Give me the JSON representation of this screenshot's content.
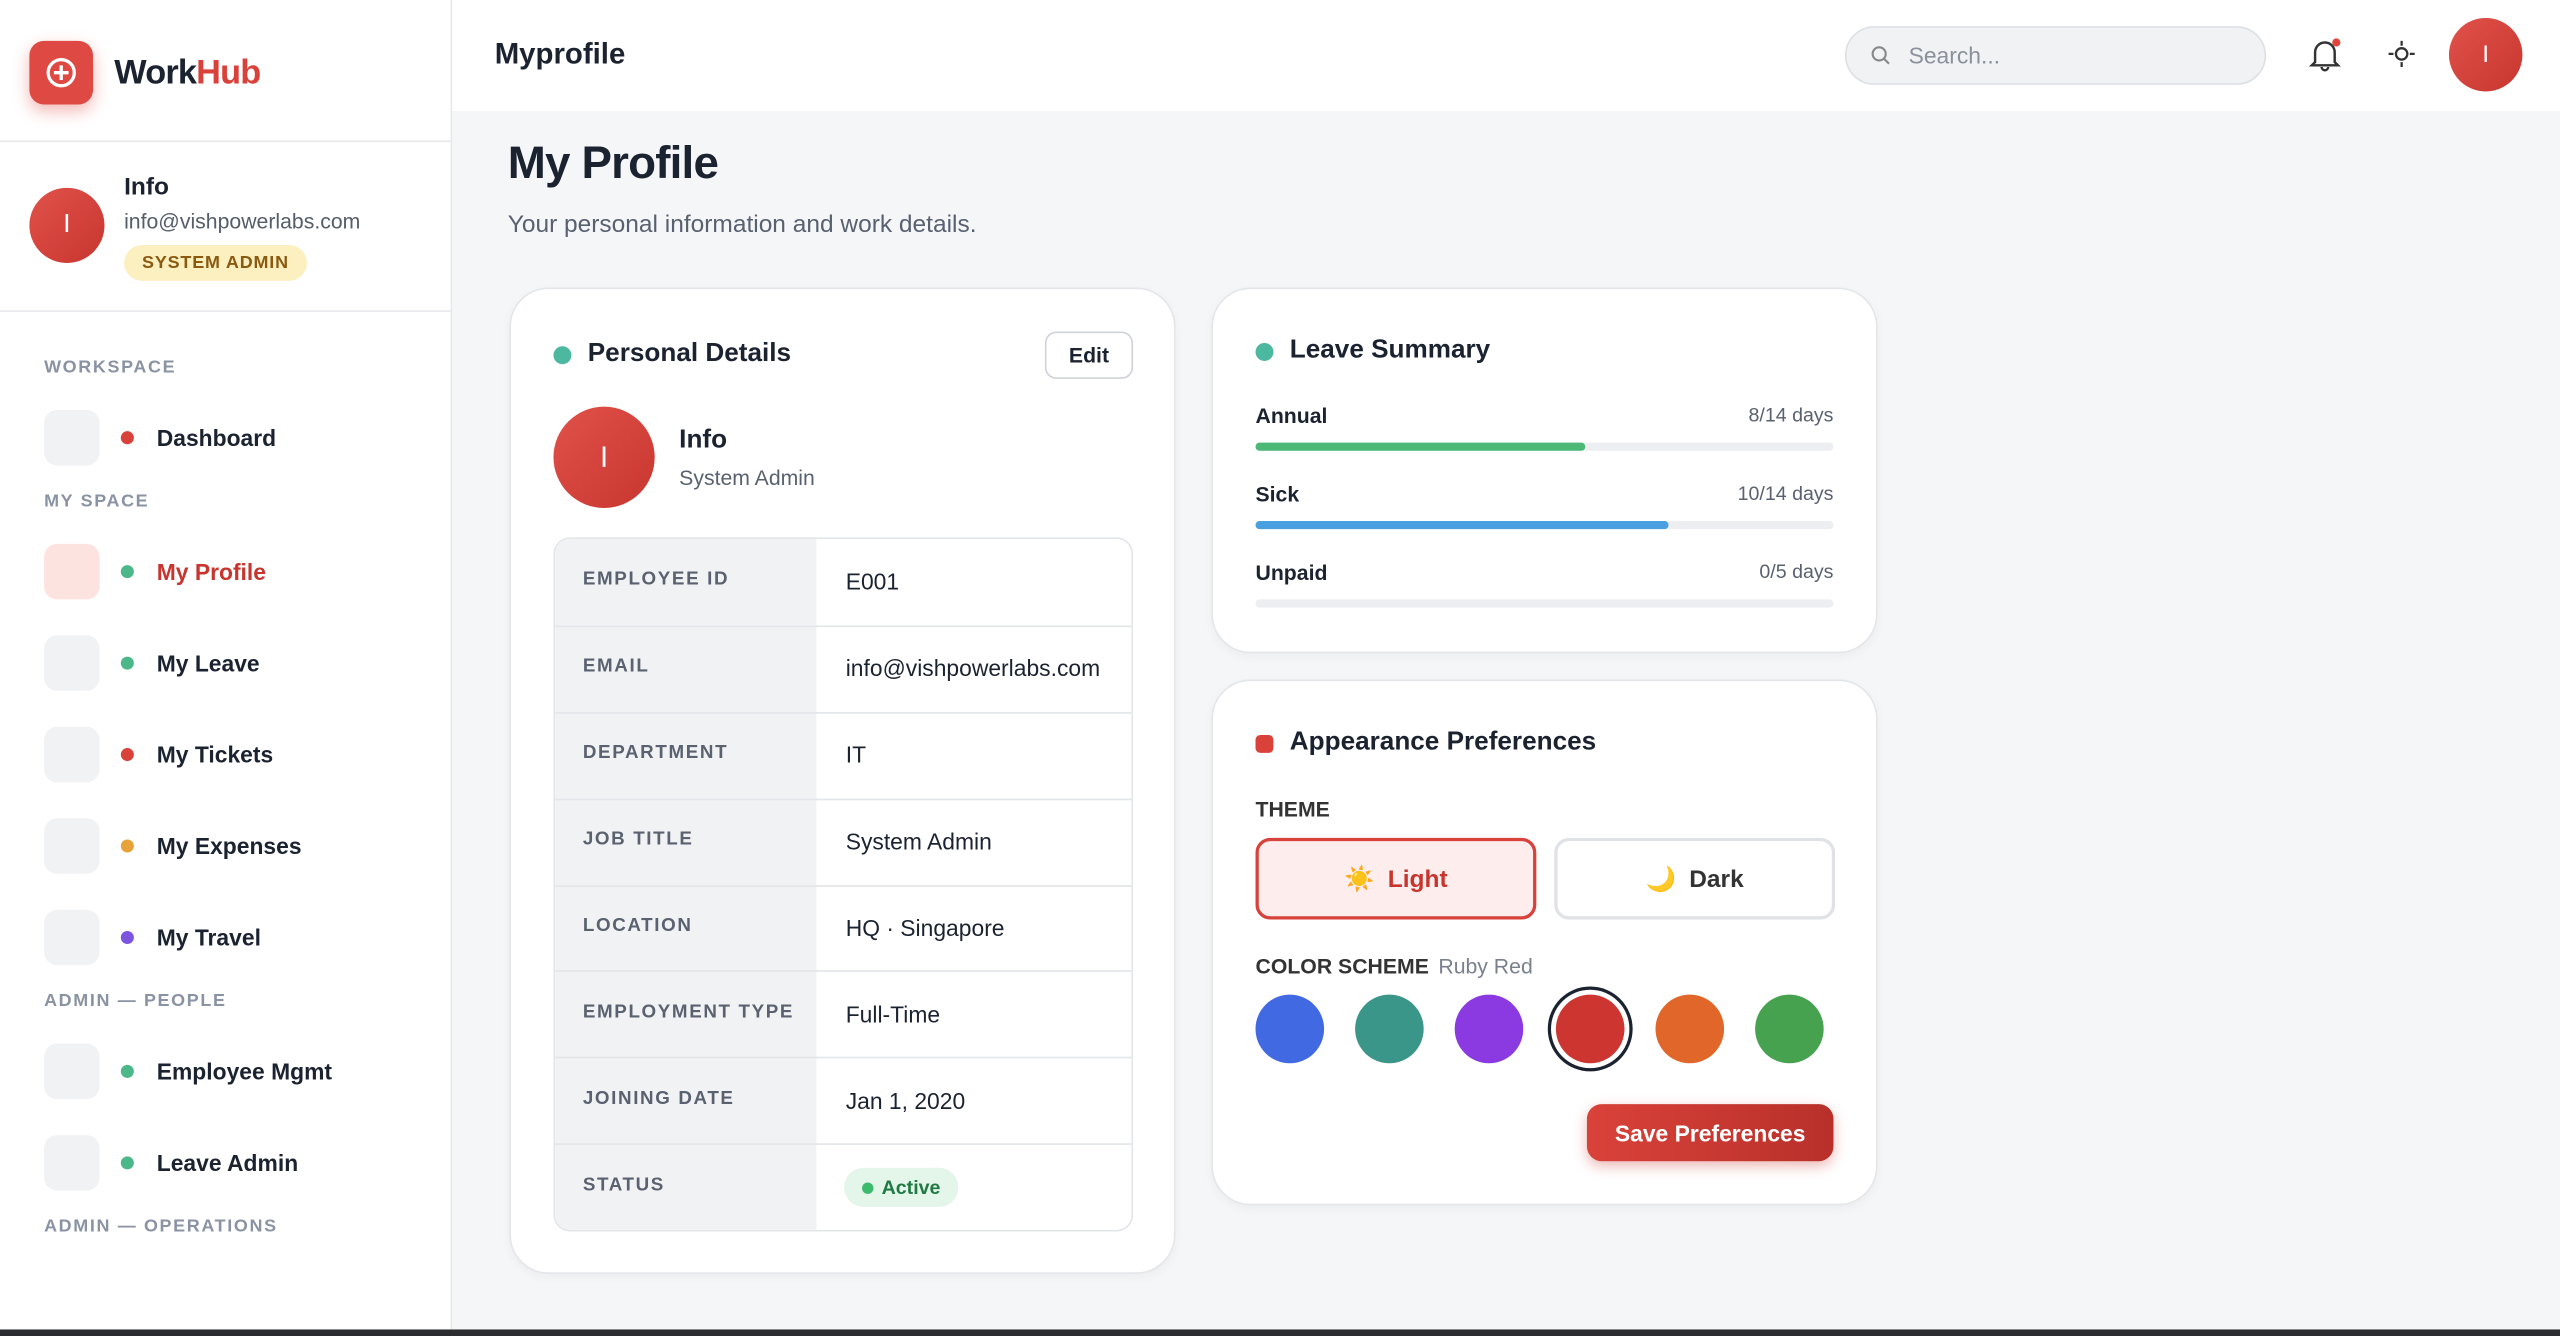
{
  "brand": {
    "part1": "Work",
    "part2": "Hub"
  },
  "user": {
    "initial": "I",
    "name": "Info",
    "email": "info@vishpowerlabs.com",
    "badge": "SYSTEM ADMIN"
  },
  "nav": [
    {
      "section": "WORKSPACE",
      "items": [
        {
          "label": "Dashboard",
          "dot": "#d9423a"
        }
      ]
    },
    {
      "section": "MY SPACE",
      "items": [
        {
          "label": "My Profile",
          "dot": "#4cb88a",
          "active": true
        },
        {
          "label": "My Leave",
          "dot": "#4cb88a"
        },
        {
          "label": "My Tickets",
          "dot": "#d9423a"
        },
        {
          "label": "My Expenses",
          "dot": "#e8a23a"
        },
        {
          "label": "My Travel",
          "dot": "#7b55e0"
        }
      ]
    },
    {
      "section": "ADMIN — PEOPLE",
      "items": [
        {
          "label": "Employee Mgmt",
          "dot": "#4cb88a"
        },
        {
          "label": "Leave Admin",
          "dot": "#4cb88a"
        }
      ]
    },
    {
      "section": "ADMIN — OPERATIONS",
      "items": []
    }
  ],
  "header": {
    "title": "Myprofile",
    "search_placeholder": "Search..."
  },
  "page": {
    "title": "My Profile",
    "subtitle": "Your personal information and work details."
  },
  "personal": {
    "title": "Personal Details",
    "edit": "Edit",
    "name": "Info",
    "role": "System Admin",
    "fields": [
      {
        "label": "EMPLOYEE ID",
        "value": "E001"
      },
      {
        "label": "EMAIL",
        "value": "info@vishpowerlabs.com"
      },
      {
        "label": "DEPARTMENT",
        "value": "IT"
      },
      {
        "label": "JOB TITLE",
        "value": "System Admin"
      },
      {
        "label": "LOCATION",
        "value": "HQ · Singapore"
      },
      {
        "label": "EMPLOYMENT TYPE",
        "value": "Full-Time"
      },
      {
        "label": "JOINING DATE",
        "value": "Jan 1, 2020"
      },
      {
        "label": "STATUS",
        "value": "Active",
        "badge": true
      }
    ]
  },
  "leave": {
    "title": "Leave Summary",
    "items": [
      {
        "name": "Annual",
        "label": "8/14 days",
        "used": 8,
        "total": 14,
        "color": "#4cb878"
      },
      {
        "name": "Sick",
        "label": "10/14 days",
        "used": 10,
        "total": 14,
        "color": "#4a9fe0"
      },
      {
        "name": "Unpaid",
        "label": "0/5 days",
        "used": 0,
        "total": 5,
        "color": "#9aa3b0"
      }
    ]
  },
  "appearance": {
    "title": "Appearance Preferences",
    "theme_label": "THEME",
    "themes": [
      {
        "icon": "☀️",
        "label": "Light",
        "selected": true
      },
      {
        "icon": "🌙",
        "label": "Dark"
      }
    ],
    "scheme_label": "COLOR SCHEME",
    "scheme_name": "Ruby Red",
    "colors": [
      "#4169e1",
      "#3a9688",
      "#8a3ae0",
      "#cc3530",
      "#e0662a",
      "#47a24f"
    ],
    "selected_color": 3,
    "save": "Save Preferences"
  }
}
